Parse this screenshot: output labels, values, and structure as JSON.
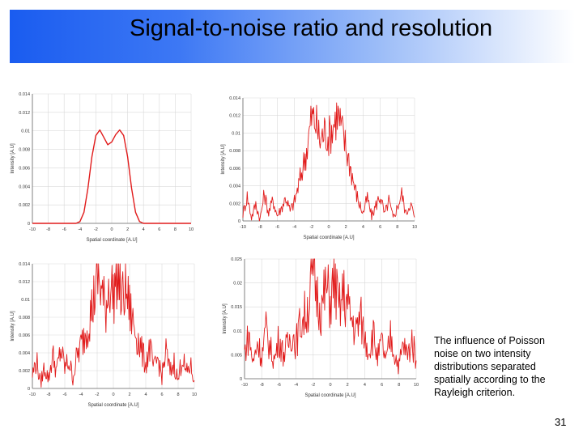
{
  "slide": {
    "title": "Signal-to-noise ratio and resolution",
    "caption": "The influence of Poisson noise on two intensity distributions separated spatially according to the Rayleigh criterion.",
    "page_number": "31"
  },
  "colors": {
    "line": "#e11b1b",
    "grid": "#d9d9d9",
    "axis": "#666666"
  },
  "chart_data": [
    {
      "type": "line",
      "noise": "none",
      "xlabel": "Spatial coordinate [A.U]",
      "ylabel": "Intensity [A.U]",
      "xlim": [
        -10,
        10
      ],
      "ylim": [
        0,
        0.014
      ],
      "xticks": [
        "-10",
        "-8",
        "-6",
        "-4",
        "-2",
        "0",
        "2",
        "4",
        "6",
        "8",
        "10"
      ],
      "yticks": [
        "0",
        "0.002",
        "0.004",
        "0.006",
        "0.008",
        "0.01",
        "0.012",
        "0.014"
      ],
      "x": [
        -10,
        -4.5,
        -4,
        -3.5,
        -3,
        -2.5,
        -2,
        -1.5,
        -1,
        -0.5,
        0,
        0.5,
        1,
        1.5,
        2,
        2.5,
        3,
        3.5,
        4,
        4.5,
        10
      ],
      "y": [
        0,
        0,
        0.0002,
        0.0012,
        0.0038,
        0.0072,
        0.0095,
        0.0101,
        0.0093,
        0.0085,
        0.0088,
        0.0096,
        0.0101,
        0.0095,
        0.0072,
        0.0038,
        0.0012,
        0.0002,
        0,
        0,
        0
      ]
    },
    {
      "type": "line",
      "noise": "low",
      "xlabel": "Spatial coordinate [A.U]",
      "ylabel": "Intensity [A.U]",
      "xlim": [
        -10,
        10
      ],
      "ylim": [
        0,
        0.014
      ],
      "xticks": [
        "-10",
        "-8",
        "-6",
        "-4",
        "-2",
        "0",
        "2",
        "4",
        "6",
        "8",
        "10"
      ],
      "yticks": [
        "0",
        "0.002",
        "0.004",
        "0.006",
        "0.008",
        "0.01",
        "0.012",
        "0.014"
      ],
      "x": [
        -10,
        -9.5,
        -9,
        -8.5,
        -8,
        -7.5,
        -7,
        -6.5,
        -6,
        -5.5,
        -5,
        -4.5,
        -4,
        -3.5,
        -3,
        -2.5,
        -2,
        -1.5,
        -1,
        -0.5,
        0,
        0.5,
        1,
        1.5,
        2,
        2.5,
        3,
        3.5,
        4,
        4.5,
        5,
        5.5,
        6,
        6.5,
        7,
        7.5,
        8,
        8.5,
        9,
        9.5,
        10
      ],
      "y": [
        0.0008,
        0.0028,
        0.0004,
        0.0019,
        0.0002,
        0.0031,
        0.0009,
        0.0024,
        0.0006,
        0.0015,
        0.0027,
        0.0011,
        0.0022,
        0.0041,
        0.0062,
        0.0085,
        0.0118,
        0.0112,
        0.0091,
        0.0102,
        0.0096,
        0.0108,
        0.0123,
        0.0104,
        0.0084,
        0.0063,
        0.0039,
        0.0021,
        0.0009,
        0.0026,
        0.0005,
        0.0018,
        0.0029,
        0.0007,
        0.0023,
        0.0003,
        0.0016,
        0.0031,
        0.0008,
        0.0021,
        0.0004
      ]
    },
    {
      "type": "line",
      "noise": "medium",
      "xlabel": "Spatial coordinate [A.U]",
      "ylabel": "Intensity [A.U]",
      "xlim": [
        -10,
        10
      ],
      "ylim": [
        0,
        0.014
      ],
      "xticks": [
        "-10",
        "-8",
        "-6",
        "-4",
        "-2",
        "0",
        "2",
        "4",
        "6",
        "8",
        "10"
      ],
      "yticks": [
        "0",
        "0.002",
        "0.004",
        "0.006",
        "0.008",
        "0.01",
        "0.012",
        "0.014"
      ],
      "x": [
        -10,
        -9.5,
        -9,
        -8.5,
        -8,
        -7.5,
        -7,
        -6.5,
        -6,
        -5.5,
        -5,
        -4.5,
        -4,
        -3.5,
        -3,
        -2.5,
        -2,
        -1.5,
        -1,
        -0.5,
        0,
        0.5,
        1,
        1.5,
        2,
        2.5,
        3,
        3.5,
        4,
        4.5,
        5,
        5.5,
        6,
        6.5,
        7,
        7.5,
        8,
        8.5,
        9,
        9.5,
        10
      ],
      "y": [
        0.0015,
        0.0032,
        0.0006,
        0.0024,
        0.0011,
        0.0038,
        0.0019,
        0.0044,
        0.0023,
        0.0031,
        0.0012,
        0.0036,
        0.0048,
        0.0062,
        0.0079,
        0.0094,
        0.0128,
        0.0112,
        0.0087,
        0.0121,
        0.0105,
        0.0138,
        0.0096,
        0.0114,
        0.0089,
        0.0072,
        0.0057,
        0.0041,
        0.0028,
        0.0046,
        0.0021,
        0.0034,
        0.0013,
        0.0042,
        0.0018,
        0.0029,
        0.0008,
        0.0037,
        0.0016,
        0.0026,
        0.0009
      ]
    },
    {
      "type": "line",
      "noise": "high",
      "xlabel": "Spatial coordinate [A.U]",
      "ylabel": "Intensity [A.U]",
      "xlim": [
        -10,
        10
      ],
      "ylim": [
        0,
        0.025
      ],
      "xticks": [
        "-10",
        "-8",
        "-6",
        "-4",
        "-2",
        "0",
        "2",
        "4",
        "6",
        "8",
        "10"
      ],
      "yticks": [
        "0",
        "0.005",
        "0.01",
        "0.015",
        "0.02",
        "0.025"
      ],
      "x": [
        -10,
        -9.5,
        -9,
        -8.5,
        -8,
        -7.5,
        -7,
        -6.5,
        -6,
        -5.5,
        -5,
        -4.5,
        -4,
        -3.5,
        -3,
        -2.5,
        -2,
        -1.5,
        -1,
        -0.5,
        0,
        0.5,
        1,
        1.5,
        2,
        2.5,
        3,
        3.5,
        4,
        4.5,
        5,
        5.5,
        6,
        6.5,
        7,
        7.5,
        8,
        8.5,
        9,
        9.5,
        10
      ],
      "y": [
        0.0055,
        0.0092,
        0.0031,
        0.0078,
        0.0045,
        0.0101,
        0.0062,
        0.0038,
        0.0086,
        0.0052,
        0.0068,
        0.0097,
        0.0074,
        0.0115,
        0.0132,
        0.0158,
        0.0228,
        0.0171,
        0.0146,
        0.0189,
        0.0163,
        0.0205,
        0.0139,
        0.0177,
        0.0151,
        0.0124,
        0.0098,
        0.0131,
        0.0085,
        0.0061,
        0.0094,
        0.0042,
        0.0076,
        0.0033,
        0.0089,
        0.0051,
        0.0027,
        0.0072,
        0.0046,
        0.0081,
        0.0038
      ]
    }
  ]
}
